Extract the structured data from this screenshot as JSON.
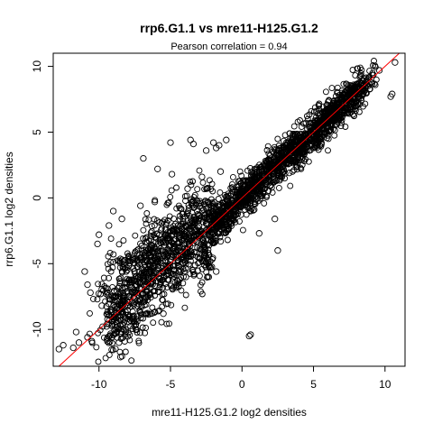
{
  "chart_data": {
    "type": "scatter",
    "title": "rrp6.G1.1 vs mre11-H125.G1.2",
    "subtitle": "Pearson correlation =  0.94",
    "xlabel": "mre11-H125.G1.2 log2 densities",
    "ylabel": "rrp6.G1.1 log2 densities",
    "xlim": [
      -13.2,
      11.4
    ],
    "ylim": [
      -12.8,
      11.0
    ],
    "xticks": [
      -10,
      -5,
      0,
      5,
      10
    ],
    "yticks": [
      -10,
      -5,
      0,
      5,
      10
    ],
    "marker": "open-circle",
    "point_color": "#000000",
    "fit_line": {
      "slope": 1.0,
      "intercept": 0.0,
      "color": "#ff0000"
    },
    "points": [
      [
        -12.8,
        -11.5
      ],
      [
        -12.5,
        -11.2
      ],
      [
        -11.8,
        -11.4
      ],
      [
        -11.6,
        -10.2
      ],
      [
        -11.4,
        -11.0
      ],
      [
        -10.8,
        -10.6
      ],
      [
        -10.5,
        -10.9
      ],
      [
        -8.5,
        -12.1
      ],
      [
        -8.2,
        -10.9
      ],
      [
        -8.6,
        -11.0
      ],
      [
        0.6,
        -10.4
      ],
      [
        0.5,
        -10.5
      ],
      [
        10.5,
        7.9
      ],
      [
        10.4,
        7.7
      ],
      [
        10.7,
        10.3
      ],
      [
        9.6,
        9.7
      ],
      [
        8.5,
        8.5
      ],
      [
        8.6,
        8.4
      ],
      [
        8.2,
        8.0
      ],
      [
        7.9,
        8.3
      ],
      [
        7.5,
        7.7
      ],
      [
        7.0,
        7.4
      ],
      [
        6.6,
        7.1
      ],
      [
        2.5,
        -4.0
      ],
      [
        1.2,
        -2.7
      ],
      [
        -1.5,
        -3.3
      ],
      [
        -3.4,
        4.1
      ],
      [
        -2.0,
        4.2
      ],
      [
        -1.1,
        4.4
      ],
      [
        -1.6,
        4.0
      ],
      [
        -5.0,
        4.2
      ],
      [
        -1.8,
        3.8
      ],
      [
        -2.5,
        3.6
      ],
      [
        -3.6,
        4.4
      ],
      [
        -6.9,
        3.0
      ],
      [
        -9.0,
        -1.0
      ],
      [
        -9.3,
        -2.1
      ],
      [
        -10.0,
        -2.8
      ],
      [
        -10.1,
        -3.5
      ],
      [
        -11.0,
        -5.6
      ],
      [
        -10.8,
        -6.6
      ],
      [
        -10.6,
        -7.2
      ],
      [
        -9.8,
        -8.2
      ],
      [
        -9.0,
        -9.2
      ],
      [
        -8.3,
        -9.7
      ],
      [
        -2.2,
        -5.3
      ],
      [
        -1.8,
        -5.6
      ],
      [
        -2.6,
        -4.8
      ],
      [
        -0.3,
        -1.2
      ],
      [
        0.6,
        -1.0
      ],
      [
        2.3,
        -1.6
      ],
      [
        -1.5,
        2.0
      ],
      [
        -2.8,
        1.6
      ],
      [
        -3.8,
        0.7
      ],
      [
        -5.9,
        2.2
      ],
      [
        -4.9,
        1.8
      ],
      [
        -6.1,
        -0.3
      ],
      [
        -7.1,
        -0.6
      ],
      [
        -8.4,
        -1.6
      ],
      [
        -9.2,
        -4.9
      ],
      [
        -4.2,
        -2.4
      ],
      [
        -3.0,
        -1.3
      ],
      [
        -6.5,
        -5.0
      ],
      [
        -7.4,
        -6.6
      ],
      [
        -6.9,
        -7.9
      ],
      [
        -5.5,
        -8.8
      ],
      [
        -7.8,
        -9.3
      ],
      [
        -3.7,
        -3.5
      ],
      [
        -2.1,
        -2.4
      ],
      [
        3.1,
        2.6
      ],
      [
        4.5,
        3.9
      ],
      [
        5.9,
        5.5
      ],
      [
        6.2,
        5.2
      ],
      [
        6.8,
        6.1
      ],
      [
        4.1,
        4.8
      ],
      [
        3.8,
        4.4
      ],
      [
        2.6,
        3.6
      ],
      [
        1.9,
        2.8
      ],
      [
        1.0,
        2.1
      ],
      [
        0.1,
        1.2
      ],
      [
        -0.5,
        0.4
      ],
      [
        5.3,
        4.4
      ],
      [
        4.9,
        4.0
      ],
      [
        3.3,
        1.9
      ],
      [
        2.4,
        1.3
      ],
      [
        1.3,
        0.2
      ]
    ]
  }
}
